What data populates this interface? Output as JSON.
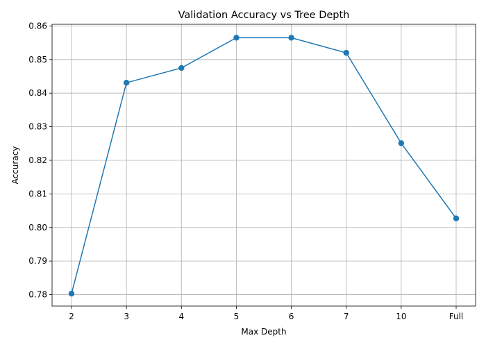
{
  "chart_data": {
    "type": "line",
    "title": "Validation Accuracy vs Tree Depth",
    "xlabel": "Max Depth",
    "ylabel": "Accuracy",
    "categories": [
      "2",
      "3",
      "4",
      "5",
      "6",
      "7",
      "10",
      "Full"
    ],
    "series": [
      {
        "values": [
          0.7803,
          0.8431,
          0.8475,
          0.8565,
          0.8565,
          0.852,
          0.8251,
          0.8027
        ],
        "color": "#1f77b4",
        "marker": "circle"
      }
    ],
    "ylim": [
      0.7766,
      0.8605
    ],
    "yticks": [
      0.78,
      0.79,
      0.8,
      0.81,
      0.82,
      0.83,
      0.84,
      0.85,
      0.86
    ],
    "ytick_labels": [
      "0.78",
      "0.79",
      "0.80",
      "0.81",
      "0.82",
      "0.83",
      "0.84",
      "0.85",
      "0.86"
    ],
    "grid": true,
    "legend": "none"
  }
}
